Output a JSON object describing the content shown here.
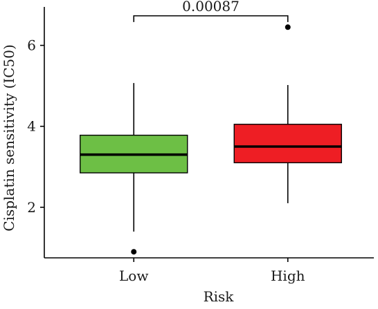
{
  "chart_data": {
    "type": "box",
    "xlabel": "Risk",
    "ylabel": "Cisplatin sensitivity (IC50)",
    "categories": [
      "Low",
      "High"
    ],
    "yticks": [
      2,
      4,
      6
    ],
    "ylim": [
      0.75,
      6.95
    ],
    "grid": false,
    "series": [
      {
        "category": "Low",
        "color": "#6dbf45",
        "whisker_low": 1.4,
        "q1": 2.85,
        "median": 3.3,
        "q3": 3.78,
        "whisker_high": 5.07,
        "outliers": [
          0.9
        ]
      },
      {
        "category": "High",
        "color": "#ee1e24",
        "whisker_low": 2.1,
        "q1": 3.1,
        "median": 3.5,
        "q3": 4.05,
        "whisker_high": 5.02,
        "outliers": [
          6.45
        ]
      }
    ],
    "annotations": [
      {
        "text": "0.00087",
        "between": [
          "Low",
          "High"
        ],
        "y": 6.73
      }
    ]
  }
}
